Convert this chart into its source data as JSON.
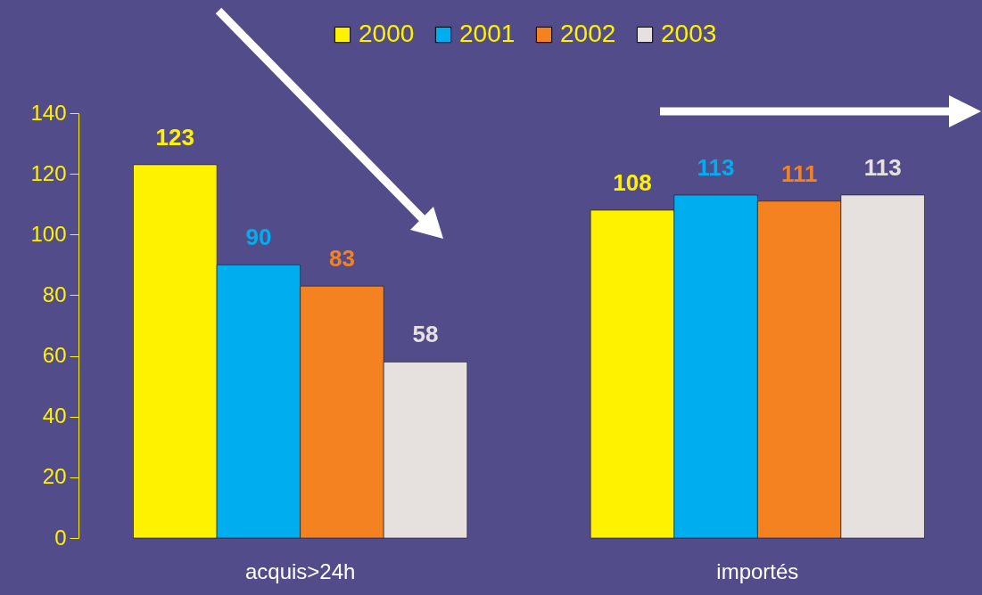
{
  "chart_data": {
    "type": "bar",
    "categories": [
      "acquis>24h",
      "importés"
    ],
    "series": [
      {
        "name": "2000",
        "color": "#fff200",
        "values": [
          123,
          108
        ]
      },
      {
        "name": "2001",
        "color": "#00aeef",
        "values": [
          90,
          113
        ]
      },
      {
        "name": "2002",
        "color": "#f58220",
        "values": [
          83,
          111
        ]
      },
      {
        "name": "2003",
        "color": "#e6e1de",
        "values": [
          58,
          113
        ]
      }
    ],
    "ylim": [
      0,
      140
    ],
    "yticks": [
      0,
      20,
      40,
      60,
      80,
      100,
      120,
      140
    ],
    "data_labels": true,
    "legend": "top",
    "grid": false
  }
}
